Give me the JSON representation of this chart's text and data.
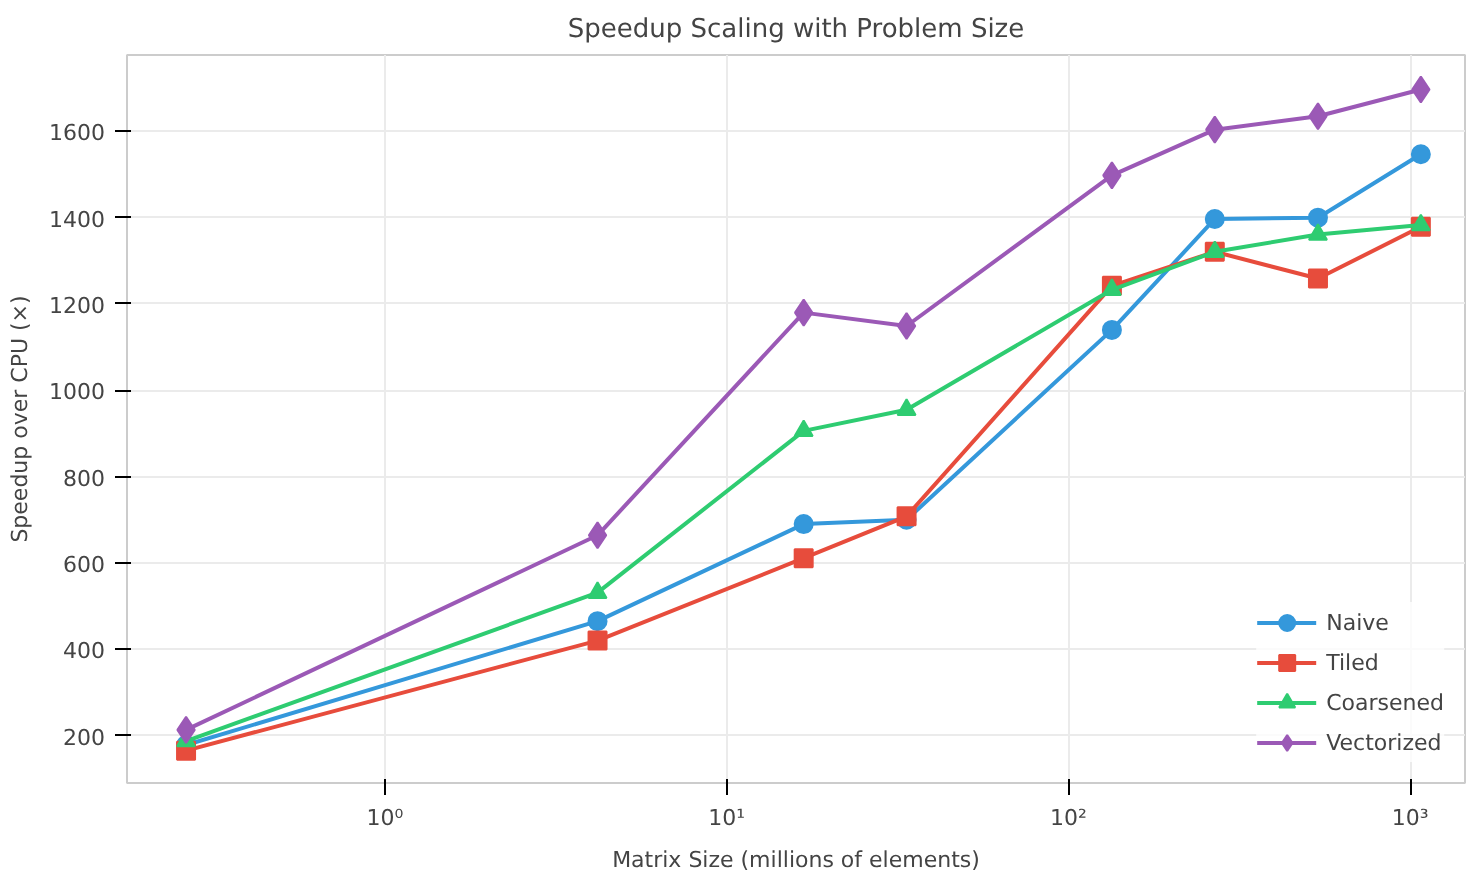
{
  "chart_data": {
    "type": "line",
    "title": "Speedup Scaling with Problem Size",
    "xlabel": "Matrix Size (millions of elements)",
    "ylabel": "Speedup over CPU (×)",
    "x": [
      0.262,
      4.19,
      16.8,
      33.6,
      134,
      268,
      537,
      1074
    ],
    "log": "x",
    "xlim": [
      0.176,
      1446
    ],
    "ylim": [
      90,
      1777
    ],
    "xticks": [
      {
        "value": 1,
        "label": "10⁰"
      },
      {
        "value": 10,
        "label": "10¹"
      },
      {
        "value": 100,
        "label": "10²"
      },
      {
        "value": 1000,
        "label": "10³"
      }
    ],
    "yticks": [
      200,
      400,
      600,
      800,
      1000,
      1200,
      1400,
      1600
    ],
    "grid": true,
    "legend": "bottom right",
    "line_style": "solid",
    "series": [
      {
        "name": "Naive",
        "color": "#3498db",
        "marker": "circle",
        "values": [
          178,
          465,
          690,
          700,
          1140,
          1397,
          1400,
          1547
        ]
      },
      {
        "name": "Tiled",
        "color": "#e74c3c",
        "marker": "square",
        "values": [
          165,
          420,
          611,
          708,
          1242,
          1321,
          1259,
          1379
        ]
      },
      {
        "name": "Coarsened",
        "color": "#2ecc71",
        "marker": "triangle",
        "values": [
          187,
          531,
          906,
          955,
          1233,
          1321,
          1361,
          1383
        ]
      },
      {
        "name": "Vectorized",
        "color": "#9b59b6",
        "marker": "diamond",
        "values": [
          213,
          664,
          1180,
          1149,
          1498,
          1604,
          1635,
          1697
        ]
      }
    ]
  }
}
